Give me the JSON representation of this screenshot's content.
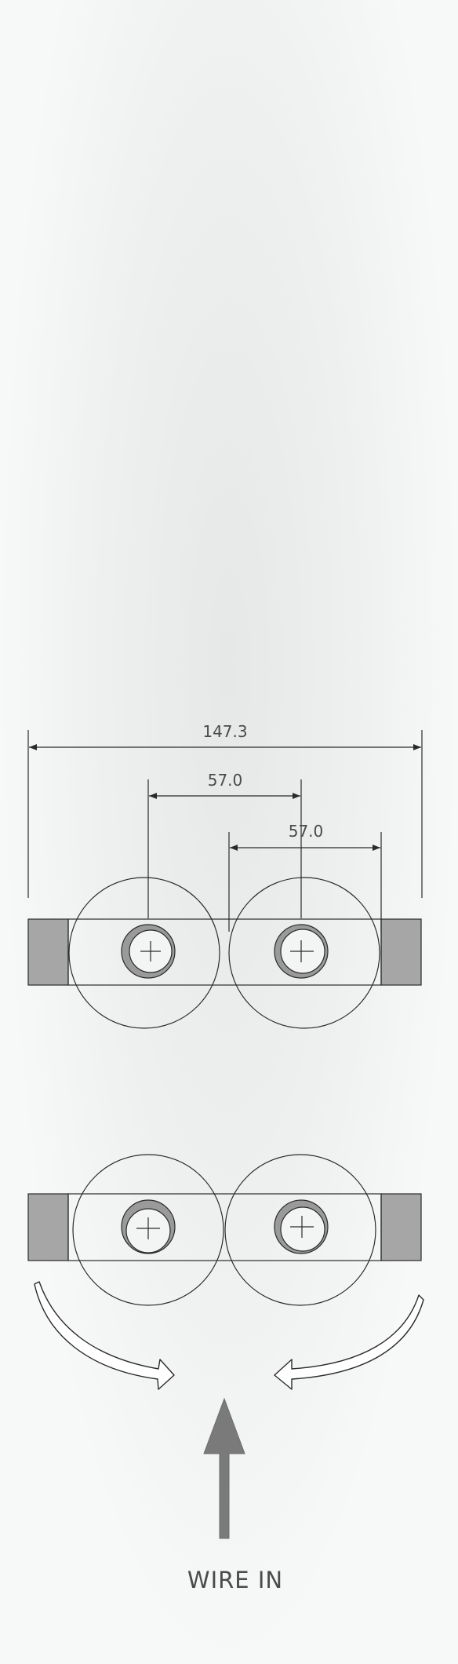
{
  "dimensions": {
    "overall": "147.3",
    "spacing_upper": "57.0",
    "spacing_lower": "57.0"
  },
  "caption": "WIRE IN",
  "colors": {
    "stroke": "#2a2a2a",
    "block_fill": "#a6a6a6",
    "bushing_fill": "#9a9a9a",
    "arrow_fill": "#7a7a7a",
    "text": "#4a4a4a"
  },
  "icons": {
    "curved_arrows": "curved-arrow-icon",
    "wire_arrow": "up-arrow-icon"
  }
}
